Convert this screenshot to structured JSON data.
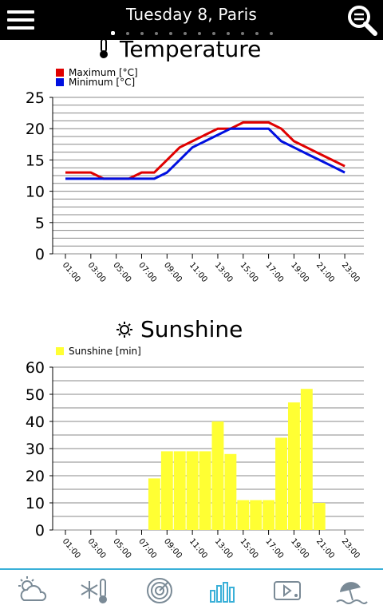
{
  "header": {
    "title": "Tuesday 8, Paris",
    "page_count": 12,
    "active_page": 0
  },
  "temperature": {
    "title": "Temperature",
    "legend": [
      "Maximum [°C]",
      "Minimum [°C]"
    ],
    "icon": "thermometer-icon"
  },
  "sunshine": {
    "title": "Sunshine",
    "legend": [
      "Sunshine [min]"
    ],
    "icon": "sun-icon"
  },
  "chart_data": [
    {
      "type": "line",
      "title": "Temperature",
      "x": [
        "01:00",
        "02:00",
        "03:00",
        "04:00",
        "05:00",
        "06:00",
        "07:00",
        "08:00",
        "09:00",
        "10:00",
        "11:00",
        "12:00",
        "13:00",
        "14:00",
        "15:00",
        "16:00",
        "17:00",
        "18:00",
        "19:00",
        "20:00",
        "21:00",
        "22:00",
        "23:00",
        "24:00"
      ],
      "tick_labels": [
        "01:00",
        "03:00",
        "05:00",
        "07:00",
        "09:00",
        "11:00",
        "13:00",
        "15:00",
        "17:00",
        "19:00",
        "21:00",
        "23:00"
      ],
      "series": [
        {
          "name": "Maximum [°C]",
          "color": "#e00000",
          "values": [
            13,
            13,
            13,
            12,
            12,
            12,
            13,
            13,
            15,
            17,
            18,
            19,
            20,
            20,
            21,
            21,
            21,
            20,
            18,
            17,
            16,
            15,
            14,
            null
          ]
        },
        {
          "name": "Minimum [°C]",
          "color": "#0010e0",
          "values": [
            12,
            12,
            12,
            12,
            12,
            12,
            12,
            12,
            13,
            15,
            17,
            18,
            19,
            20,
            20,
            20,
            20,
            18,
            17,
            16,
            15,
            14,
            13,
            null
          ]
        }
      ],
      "ylim": [
        0,
        25
      ],
      "yticks": [
        0,
        5,
        10,
        15,
        20,
        25
      ],
      "grid": true,
      "legend_position": "top-left"
    },
    {
      "type": "bar",
      "title": "Sunshine",
      "x": [
        "01:00",
        "02:00",
        "03:00",
        "04:00",
        "05:00",
        "06:00",
        "07:00",
        "08:00",
        "09:00",
        "10:00",
        "11:00",
        "12:00",
        "13:00",
        "14:00",
        "15:00",
        "16:00",
        "17:00",
        "18:00",
        "19:00",
        "20:00",
        "21:00",
        "22:00",
        "23:00",
        "24:00"
      ],
      "tick_labels": [
        "01:00",
        "03:00",
        "05:00",
        "07:00",
        "09:00",
        "11:00",
        "13:00",
        "15:00",
        "17:00",
        "19:00",
        "21:00",
        "23:00"
      ],
      "series": [
        {
          "name": "Sunshine [min]",
          "color": "#ffff33",
          "values": [
            0,
            0,
            0,
            0,
            0,
            0,
            0,
            19,
            29,
            29,
            29,
            29,
            40,
            28,
            11,
            11,
            11,
            34,
            47,
            52,
            10,
            0,
            0,
            0
          ]
        }
      ],
      "ylim": [
        0,
        60
      ],
      "yticks": [
        0,
        10,
        20,
        30,
        40,
        50,
        60
      ],
      "grid": true,
      "legend_position": "top-left"
    }
  ],
  "bottom_nav": [
    {
      "name": "tab-forecast",
      "icon": "sun-cloud-icon",
      "active": false
    },
    {
      "name": "tab-temperature",
      "icon": "snowflake-thermometer-icon",
      "active": false
    },
    {
      "name": "tab-radar",
      "icon": "radar-icon",
      "active": false
    },
    {
      "name": "tab-charts",
      "icon": "bar-chart-icon",
      "active": true
    },
    {
      "name": "tab-video",
      "icon": "video-icon",
      "active": false
    },
    {
      "name": "tab-beach",
      "icon": "beach-umbrella-icon",
      "active": false
    }
  ],
  "colors": {
    "topbar": "#000000",
    "accent": "#3ab0d8",
    "max_line": "#e00000",
    "min_line": "#0010e0",
    "bar": "#ffff33"
  }
}
